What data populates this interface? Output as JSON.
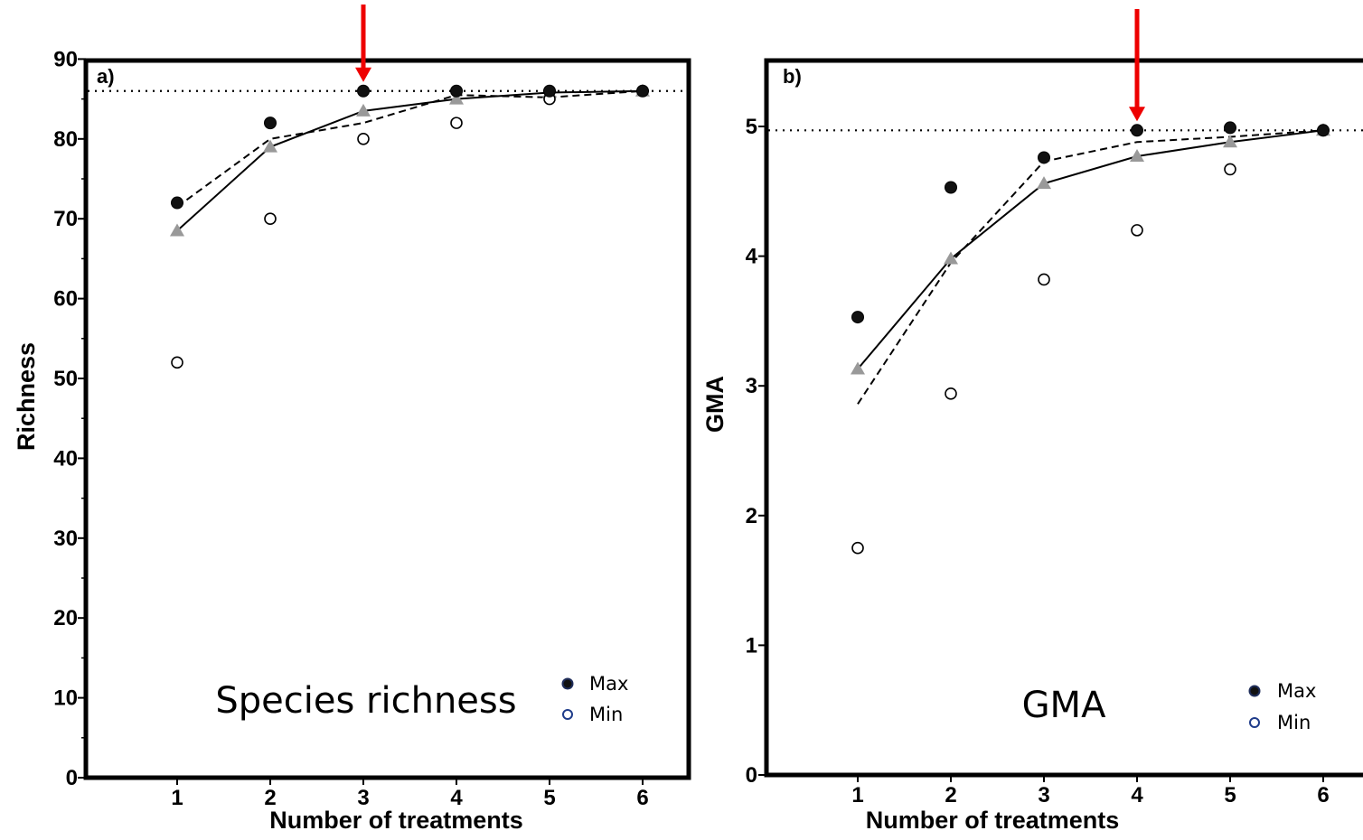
{
  "chart_data": [
    {
      "type": "scatter",
      "panel_label": "a)",
      "inset_label": "Species richness",
      "xlabel": "Number of treatments",
      "ylabel": "Richness",
      "x_ticks": [
        "1",
        "2",
        "3",
        "4",
        "5",
        "6"
      ],
      "y_ticks": [
        "0",
        "10",
        "20",
        "30",
        "40",
        "50",
        "60",
        "70",
        "80",
        "90"
      ],
      "xlim": [
        0,
        6.5
      ],
      "ylim": [
        0,
        90
      ],
      "reference_line_y": 86,
      "arrow_at_x": 3,
      "legend_labels": [
        "Max",
        "Min"
      ],
      "legend_position": "bottom-right",
      "series": [
        {
          "name": "Max",
          "marker": "filled-circle",
          "x": [
            1,
            2,
            3,
            4,
            5,
            6
          ],
          "y": [
            72,
            82,
            86,
            86,
            86,
            86
          ]
        },
        {
          "name": "Min",
          "marker": "open-circle",
          "x": [
            1,
            2,
            3,
            4,
            5,
            6
          ],
          "y": [
            52,
            70,
            80,
            82,
            85,
            86
          ]
        },
        {
          "marker": "gray-triangle-solid-line",
          "x": [
            1,
            2,
            3,
            4,
            5,
            6
          ],
          "y": [
            68.5,
            79,
            83.5,
            85,
            85.8,
            86
          ]
        },
        {
          "marker": "dashed-line",
          "x": [
            1,
            2,
            3,
            4,
            5,
            6
          ],
          "y": [
            71.5,
            80,
            82,
            85.5,
            85.2,
            86
          ]
        }
      ]
    },
    {
      "type": "scatter",
      "panel_label": "b)",
      "inset_label": "GMA",
      "xlabel": "Number of treatments",
      "ylabel": "GMA",
      "x_ticks": [
        "1",
        "2",
        "3",
        "4",
        "5",
        "6"
      ],
      "y_ticks": [
        "0",
        "1",
        "2",
        "3",
        "4",
        "5"
      ],
      "xlim": [
        0,
        6.5
      ],
      "ylim": [
        0,
        5.2
      ],
      "reference_line_y": 4.97,
      "arrow_at_x": 4,
      "legend_labels": [
        "Max",
        "Min"
      ],
      "legend_position": "bottom-right",
      "series": [
        {
          "name": "Max",
          "marker": "filled-circle",
          "x": [
            1,
            2,
            3,
            4,
            5,
            6
          ],
          "y": [
            3.53,
            4.53,
            4.76,
            4.97,
            4.99,
            4.97
          ]
        },
        {
          "name": "Min",
          "marker": "open-circle",
          "x": [
            1,
            2,
            3,
            4,
            5,
            6
          ],
          "y": [
            1.75,
            2.94,
            3.82,
            4.2,
            4.67,
            4.97
          ]
        },
        {
          "marker": "gray-triangle-solid-line",
          "x": [
            1,
            2,
            3,
            4,
            5,
            6
          ],
          "y": [
            3.13,
            3.98,
            4.56,
            4.77,
            4.88,
            4.97
          ]
        },
        {
          "marker": "dashed-line",
          "x": [
            1,
            2,
            3,
            4,
            5,
            6
          ],
          "y": [
            2.86,
            3.95,
            4.73,
            4.88,
            4.92,
            4.97
          ]
        }
      ]
    }
  ]
}
